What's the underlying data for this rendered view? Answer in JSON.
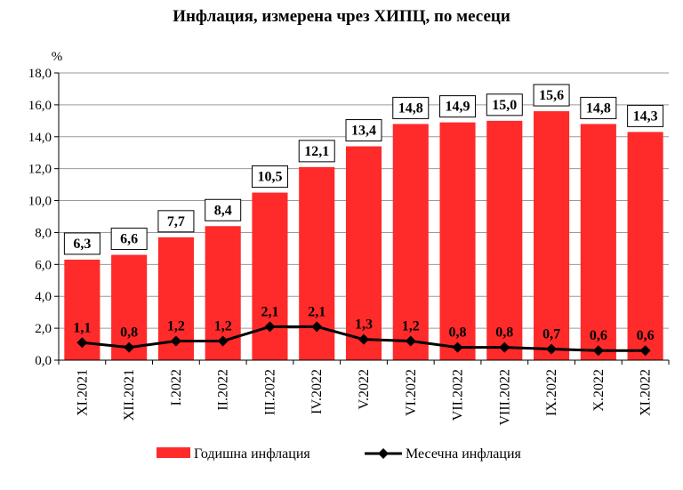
{
  "chart_data": {
    "type": "bar",
    "title": "Инфлация, измерена чрез ХИПЦ, по месеци",
    "ylabel": "%",
    "ylim": [
      0,
      18
    ],
    "yticks": [
      "0,0",
      "2,0",
      "4,0",
      "6,0",
      "8,0",
      "10,0",
      "12,0",
      "14,0",
      "16,0",
      "18,0"
    ],
    "grid": true,
    "legend_position": "bottom",
    "categories": [
      "XI.2021",
      "XII.2021",
      "I.2022",
      "II.2022",
      "III.2022",
      "IV.2022",
      "V.2022",
      "VI.2022",
      "VII.2022",
      "VIII.2022",
      "IX.2022",
      "X.2022",
      "XI.2022"
    ],
    "series": [
      {
        "name": "Годишна инфлация",
        "type": "bar",
        "color": "#ff2a2a",
        "values": [
          6.3,
          6.6,
          7.7,
          8.4,
          10.5,
          12.1,
          13.4,
          14.8,
          14.9,
          15.0,
          15.6,
          14.8,
          14.3
        ],
        "labels": [
          "6,3",
          "6,6",
          "7,7",
          "8,4",
          "10,5",
          "12,1",
          "13,4",
          "14,8",
          "14,9",
          "15,0",
          "15,6",
          "14,8",
          "14,3"
        ]
      },
      {
        "name": "Месечна инфлация",
        "type": "line",
        "color": "#000000",
        "values": [
          1.1,
          0.8,
          1.2,
          1.2,
          2.1,
          2.1,
          1.3,
          1.2,
          0.8,
          0.8,
          0.7,
          0.6,
          0.6
        ],
        "labels": [
          "1,1",
          "0,8",
          "1,2",
          "1,2",
          "2,1",
          "2,1",
          "1,3",
          "1,2",
          "0,8",
          "0,8",
          "0,7",
          "0,6",
          "0,6"
        ]
      }
    ]
  }
}
